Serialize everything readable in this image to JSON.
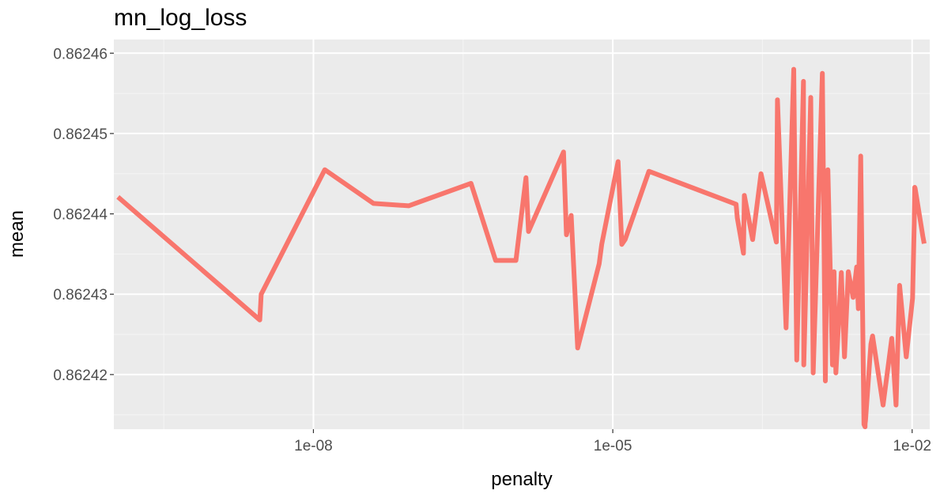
{
  "chart_data": {
    "type": "line",
    "title": "mn_log_loss",
    "xlabel": "penalty",
    "ylabel": "mean",
    "x_scale": "log10",
    "xlim": [
      1e-10,
      0.015
    ],
    "ylim": [
      0.8624132,
      0.8624617
    ],
    "x_ticks": [
      1e-08,
      1e-05,
      0.01
    ],
    "x_tick_labels": [
      "1e-08",
      "1e-05",
      "1e-02"
    ],
    "y_ticks": [
      0.86242,
      0.86243,
      0.86244,
      0.86245,
      0.86246
    ],
    "y_tick_labels": [
      "0.86242",
      "0.86243",
      "0.86244",
      "0.86245",
      "0.86246"
    ],
    "grid": true,
    "legend": "none",
    "series": [
      {
        "color": "#F8766D",
        "x": [
          1.1e-10,
          2.9e-09,
          3e-09,
          1.3e-08,
          4e-08,
          9e-08,
          3.8e-07,
          6.7e-07,
          1.07e-06,
          1.35e-06,
          1.43e-06,
          3.21e-06,
          3.43e-06,
          3.83e-06,
          4.45e-06,
          7.3e-06,
          7.75e-06,
          1.13e-05,
          1.23e-05,
          1.33e-05,
          2.3e-05,
          0.000172,
          0.000177,
          0.000204,
          0.000208,
          0.000252,
          0.000306,
          0.000436,
          0.000447,
          0.000545,
          0.000651,
          0.000698,
          0.000815,
          0.00082,
          0.000964,
          0.00102,
          0.00126,
          0.00135,
          0.00143,
          0.00159,
          0.00165,
          0.00172,
          0.00195,
          0.0021,
          0.00229,
          0.00256,
          0.00278,
          0.00289,
          0.00305,
          0.00329,
          0.00337,
          0.00338,
          0.00341,
          0.00386,
          0.00401,
          0.00511,
          0.00625,
          0.0069,
          0.00749,
          0.00872,
          0.0101,
          0.0105,
          0.0106,
          0.0107,
          0.0128,
          0.0132
        ],
        "y": [
          0.8624421,
          0.8624268,
          0.86243,
          0.8624455,
          0.8624413,
          0.862441,
          0.8624438,
          0.8624342,
          0.8624342,
          0.8624445,
          0.8624378,
          0.8624477,
          0.8624374,
          0.8624398,
          0.8624233,
          0.8624338,
          0.8624362,
          0.8624465,
          0.8624362,
          0.8624368,
          0.8624453,
          0.8624412,
          0.8624395,
          0.8624351,
          0.8624423,
          0.8624368,
          0.862445,
          0.8624365,
          0.8624542,
          0.8624258,
          0.862458,
          0.8624218,
          0.8624565,
          0.8624212,
          0.8624545,
          0.8624202,
          0.8624575,
          0.8624192,
          0.8624455,
          0.8624212,
          0.8624328,
          0.8624202,
          0.8624327,
          0.8624222,
          0.8624328,
          0.8624296,
          0.8624334,
          0.8624282,
          0.8624472,
          0.8624138,
          0.8624135,
          0.8624139,
          0.8624143,
          0.8624238,
          0.8624248,
          0.8624162,
          0.8624245,
          0.8624162,
          0.8624311,
          0.8624222,
          0.8624295,
          0.8624388,
          0.8624433,
          0.8624432,
          0.8624372,
          0.8624363
        ]
      }
    ]
  }
}
